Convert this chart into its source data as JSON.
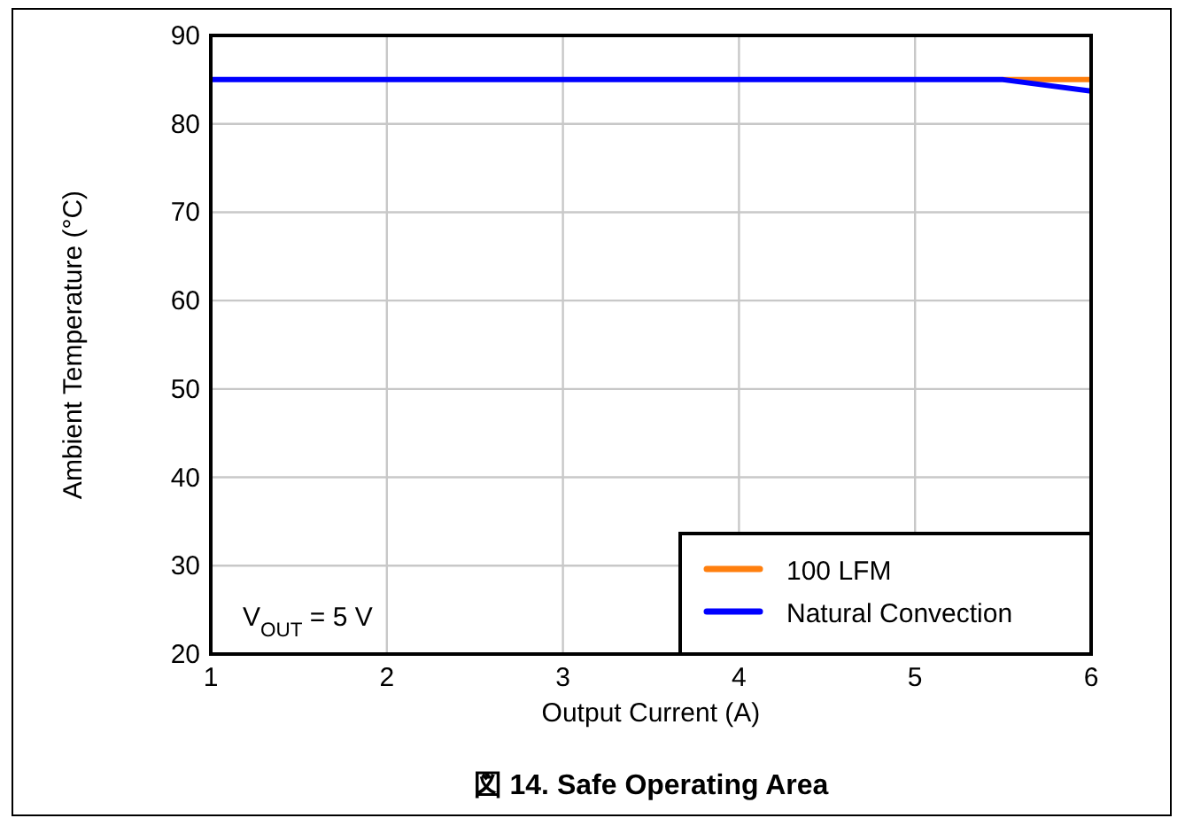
{
  "chart_data": {
    "type": "line",
    "title": "図 14. Safe Operating Area",
    "xlabel": "Output Current (A)",
    "ylabel": "Ambient Temperature (°C)",
    "series": [
      {
        "name": "100 LFM",
        "color": "#ff7f0e",
        "x": [
          5.5,
          6
        ],
        "values": [
          85,
          85
        ]
      },
      {
        "name": "Natural Convection",
        "color": "#0000ff",
        "x": [
          1,
          5.5,
          6
        ],
        "values": [
          85,
          85,
          83.7
        ]
      }
    ],
    "xlim": [
      1,
      6
    ],
    "ylim": [
      20,
      90
    ],
    "xticks": [
      1,
      2,
      3,
      4,
      5,
      6
    ],
    "yticks": [
      20,
      30,
      40,
      50,
      60,
      70,
      80,
      90
    ],
    "grid": true,
    "legend": "bottom right",
    "annotations": [
      "V$_{OUT}$ = 5 V"
    ]
  }
}
